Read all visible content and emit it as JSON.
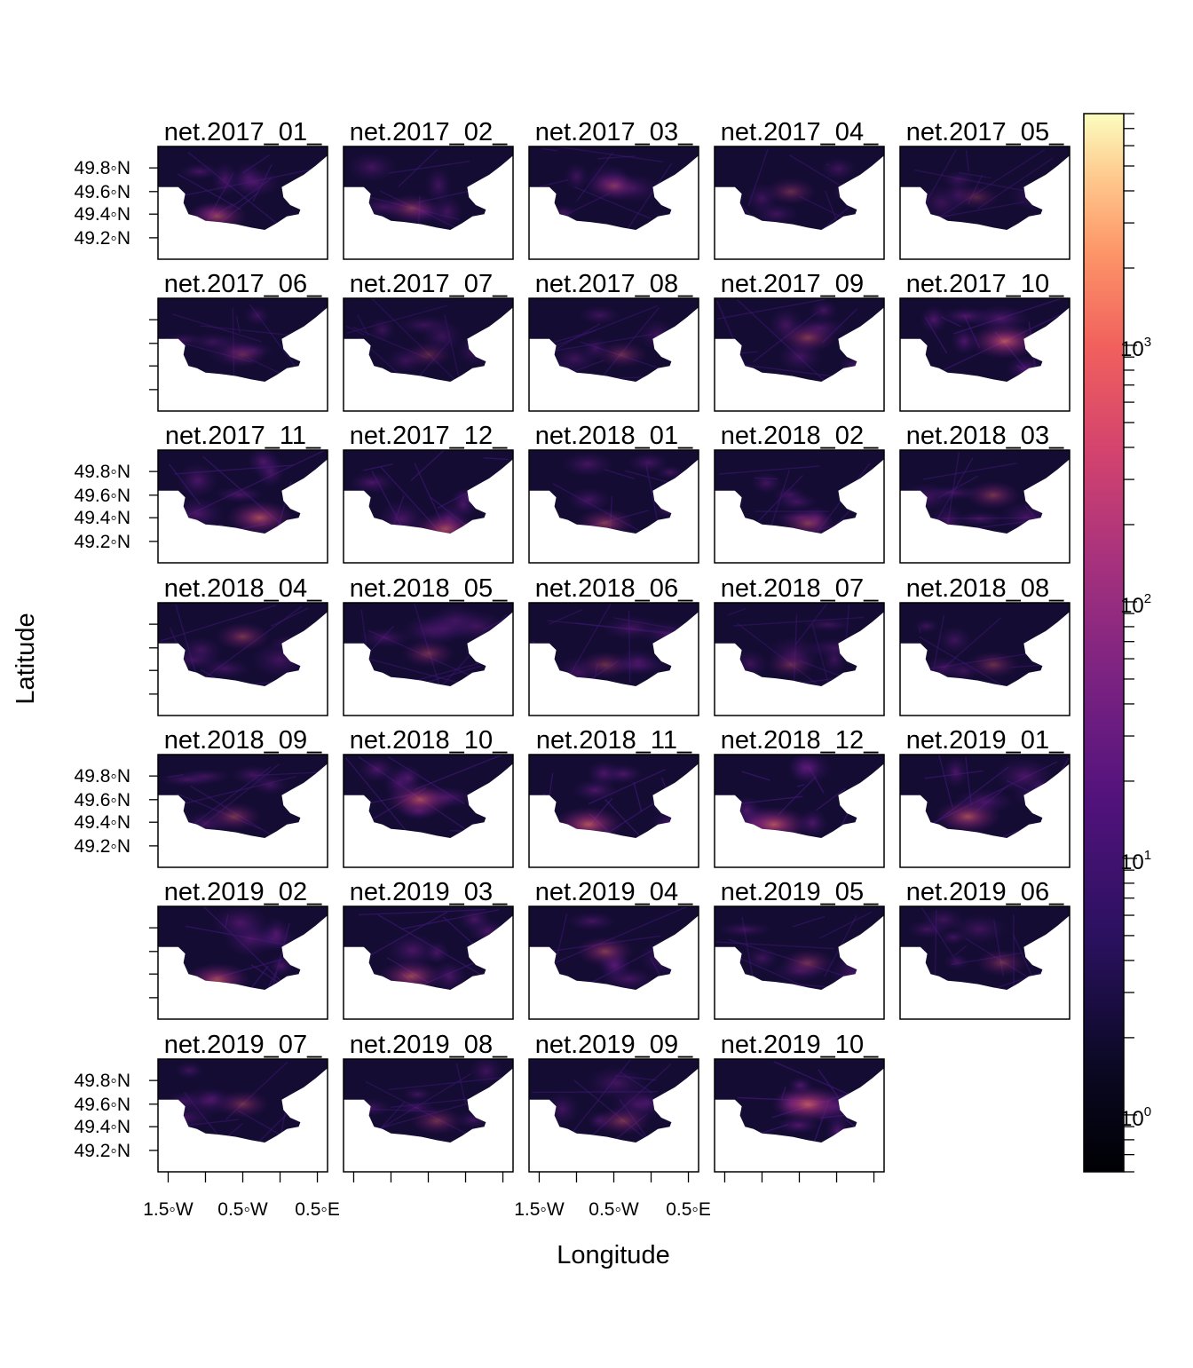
{
  "figure": {
    "xlabel": "Longitude",
    "ylabel": "Latitude"
  },
  "chart_data": {
    "type": "heatmap",
    "xlabel": "Longitude",
    "ylabel": "Latitude",
    "panels": [
      {
        "label": "net.2017_01_",
        "hotspot": [
          0.35,
          0.62
        ],
        "intensity": 0.55
      },
      {
        "label": "net.2017_02_",
        "hotspot": [
          0.4,
          0.55
        ],
        "intensity": 0.45
      },
      {
        "label": "net.2017_03_",
        "hotspot": [
          0.5,
          0.35
        ],
        "intensity": 0.42
      },
      {
        "label": "net.2017_04_",
        "hotspot": [
          0.45,
          0.4
        ],
        "intensity": 0.38
      },
      {
        "label": "net.2017_05_",
        "hotspot": [
          0.45,
          0.45
        ],
        "intensity": 0.3
      },
      {
        "label": "net.2017_06_",
        "hotspot": [
          0.5,
          0.5
        ],
        "intensity": 0.3
      },
      {
        "label": "net.2017_07_",
        "hotspot": [
          0.5,
          0.5
        ],
        "intensity": 0.32
      },
      {
        "label": "net.2017_08_",
        "hotspot": [
          0.55,
          0.5
        ],
        "intensity": 0.38
      },
      {
        "label": "net.2017_09_",
        "hotspot": [
          0.55,
          0.35
        ],
        "intensity": 0.5
      },
      {
        "label": "net.2017_10_",
        "hotspot": [
          0.62,
          0.38
        ],
        "intensity": 0.75
      },
      {
        "label": "net.2017_11_",
        "hotspot": [
          0.6,
          0.6
        ],
        "intensity": 0.68
      },
      {
        "label": "net.2017_12_",
        "hotspot": [
          0.6,
          0.7
        ],
        "intensity": 0.66
      },
      {
        "label": "net.2018_01_",
        "hotspot": [
          0.45,
          0.65
        ],
        "intensity": 0.52
      },
      {
        "label": "net.2018_02_",
        "hotspot": [
          0.55,
          0.65
        ],
        "intensity": 0.5
      },
      {
        "label": "net.2018_03_",
        "hotspot": [
          0.55,
          0.4
        ],
        "intensity": 0.45
      },
      {
        "label": "net.2018_04_",
        "hotspot": [
          0.5,
          0.3
        ],
        "intensity": 0.45
      },
      {
        "label": "net.2018_05_",
        "hotspot": [
          0.5,
          0.45
        ],
        "intensity": 0.42
      },
      {
        "label": "net.2018_06_",
        "hotspot": [
          0.45,
          0.55
        ],
        "intensity": 0.4
      },
      {
        "label": "net.2018_07_",
        "hotspot": [
          0.45,
          0.55
        ],
        "intensity": 0.35
      },
      {
        "label": "net.2018_08_",
        "hotspot": [
          0.55,
          0.55
        ],
        "intensity": 0.4
      },
      {
        "label": "net.2018_09_",
        "hotspot": [
          0.45,
          0.55
        ],
        "intensity": 0.45
      },
      {
        "label": "net.2018_10_",
        "hotspot": [
          0.45,
          0.4
        ],
        "intensity": 0.68
      },
      {
        "label": "net.2018_11_",
        "hotspot": [
          0.35,
          0.62
        ],
        "intensity": 0.74
      },
      {
        "label": "net.2018_12_",
        "hotspot": [
          0.35,
          0.62
        ],
        "intensity": 0.74
      },
      {
        "label": "net.2019_01_",
        "hotspot": [
          0.4,
          0.55
        ],
        "intensity": 0.66
      },
      {
        "label": "net.2019_02_",
        "hotspot": [
          0.35,
          0.65
        ],
        "intensity": 0.66
      },
      {
        "label": "net.2019_03_",
        "hotspot": [
          0.4,
          0.62
        ],
        "intensity": 0.63
      },
      {
        "label": "net.2019_04_",
        "hotspot": [
          0.45,
          0.4
        ],
        "intensity": 0.52
      },
      {
        "label": "net.2019_05_",
        "hotspot": [
          0.55,
          0.5
        ],
        "intensity": 0.42
      },
      {
        "label": "net.2019_06_",
        "hotspot": [
          0.6,
          0.5
        ],
        "intensity": 0.4
      },
      {
        "label": "net.2019_07_",
        "hotspot": [
          0.5,
          0.4
        ],
        "intensity": 0.42
      },
      {
        "label": "net.2019_08_",
        "hotspot": [
          0.55,
          0.55
        ],
        "intensity": 0.42
      },
      {
        "label": "net.2019_09_",
        "hotspot": [
          0.55,
          0.55
        ],
        "intensity": 0.45
      },
      {
        "label": "net.2019_10_",
        "hotspot": [
          0.55,
          0.4
        ],
        "intensity": 0.8
      }
    ],
    "layout": {
      "columns": 5,
      "rows": 7
    },
    "y_ticks": [
      "49.8◦N",
      "49.6◦N",
      "49.4◦N",
      "49.2◦N"
    ],
    "y_tick_values": [
      49.8,
      49.6,
      49.4,
      49.2
    ],
    "x_ticks": [
      "1.5◦W",
      "0.5◦W",
      "0.5◦E"
    ],
    "x_tick_values": [
      -1.5,
      -0.5,
      0.5
    ],
    "colorbar": {
      "scale": "log10",
      "range": [
        0.6,
        8000
      ],
      "labels": [
        {
          "base": "10",
          "exp": "0",
          "value": 1
        },
        {
          "base": "10",
          "exp": "1",
          "value": 10
        },
        {
          "base": "10",
          "exp": "2",
          "value": 100
        },
        {
          "base": "10",
          "exp": "3",
          "value": 1000
        }
      ],
      "palette": [
        "#000004",
        "#1c1044",
        "#4f127b",
        "#812581",
        "#b5367a",
        "#e55064",
        "#fb8761",
        "#fec287",
        "#fcfdbf"
      ]
    },
    "land_color": "#ffffff",
    "sea_base_color": "#140c32"
  }
}
